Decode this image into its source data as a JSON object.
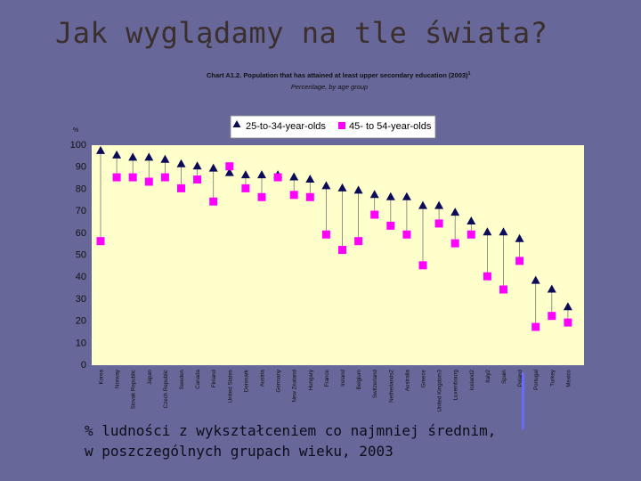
{
  "slide": {
    "title": "Jak wyglądamy na tle świata?",
    "caption_line1": "% ludności z wykształceniem co najmniej średnim,",
    "caption_line2": "w poszczególnych grupach wieku, 2003"
  },
  "colors": {
    "background": "#67679a",
    "plot_background": "#ffffcc",
    "series1": "#0b0b5a",
    "series2": "#ff00ff",
    "pointer": "#6a6aff"
  },
  "chart_data": {
    "type": "scatter",
    "title": "Chart A1.2. Population that has attained at least upper secondary education (2003)",
    "title_superscript": "1",
    "subtitle": "Percentage, by age group",
    "ylabel": "%",
    "ylim": [
      0,
      100
    ],
    "yticks": [
      0,
      10,
      20,
      30,
      40,
      50,
      60,
      70,
      80,
      90,
      100
    ],
    "grid": false,
    "legend_position": "top",
    "categories": [
      "Korea",
      "Norway",
      "Slovak Republic",
      "Japan",
      "Czech Republic",
      "Sweden",
      "Canada",
      "Finland",
      "United States",
      "Denmark",
      "Austria",
      "Germany",
      "New Zealand",
      "Hungary",
      "France",
      "Ireland",
      "Belgium",
      "Switzerland",
      "Netherlands2",
      "Australia",
      "Greece",
      "United Kingdom3",
      "Luxembourg",
      "Iceland2",
      "Italy2",
      "Spain",
      "Poland",
      "Portugal",
      "Turkey",
      "Mexico"
    ],
    "series": [
      {
        "name": "25-to-34-year-olds",
        "marker": "triangle",
        "values": [
          97,
          95,
          94,
          94,
          93,
          91,
          90,
          89,
          87,
          86,
          86,
          86,
          85,
          84,
          81,
          80,
          79,
          77,
          76,
          76,
          72,
          72,
          69,
          65,
          60,
          60,
          57,
          38,
          34,
          26
        ]
      },
      {
        "name": "45- to 54-year-olds",
        "marker": "square",
        "values": [
          56,
          85,
          85,
          83,
          85,
          80,
          84,
          74,
          90,
          80,
          76,
          85,
          77,
          76,
          59,
          52,
          56,
          68,
          63,
          59,
          45,
          64,
          55,
          59,
          40,
          34,
          47,
          17,
          22,
          19
        ]
      }
    ]
  }
}
